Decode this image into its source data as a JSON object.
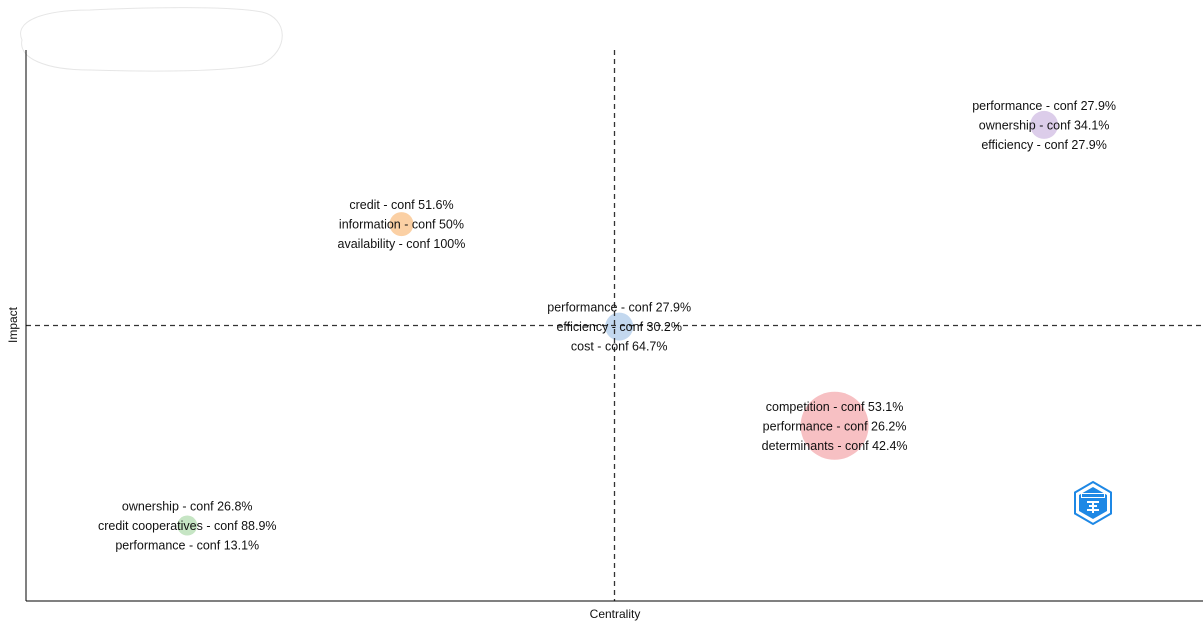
{
  "chart_data": {
    "type": "scatter",
    "xlabel": "Centrality",
    "ylabel": "Impact",
    "xlim": [
      0,
      1
    ],
    "ylim": [
      0,
      1
    ],
    "reference_lines": {
      "x": 0.5,
      "y": 0.5,
      "style": "dashed"
    },
    "grid": false,
    "clusters": [
      {
        "x": 0.137,
        "y": 0.137,
        "size": 10,
        "color": "#c6e5c4",
        "labels": [
          "ownership - conf 26.8%",
          "credit cooperatives - conf 88.9%",
          "performance - conf 13.1%"
        ]
      },
      {
        "x": 0.319,
        "y": 0.684,
        "size": 12,
        "color": "#fbd0a4",
        "labels": [
          "credit - conf 51.6%",
          "information - conf 50%",
          "availability - conf 100%"
        ]
      },
      {
        "x": 0.504,
        "y": 0.498,
        "size": 14,
        "color": "#c3d8ef",
        "labels": [
          "performance - conf 27.9%",
          "efficiency - conf 30.2%",
          "cost - conf 64.7%"
        ]
      },
      {
        "x": 0.687,
        "y": 0.318,
        "size": 34,
        "color": "#f7c0c3",
        "labels": [
          "competition - conf 53.1%",
          "performance - conf 26.2%",
          "determinants - conf 42.4%"
        ]
      },
      {
        "x": 0.865,
        "y": 0.864,
        "size": 14,
        "color": "#dccdea",
        "labels": [
          "performance - conf 27.9%",
          "ownership - conf 34.1%",
          "efficiency - conf 27.9%"
        ]
      }
    ]
  },
  "logo": {
    "icon": "bibliometrix-logo-icon",
    "color": "#1e88e5"
  }
}
